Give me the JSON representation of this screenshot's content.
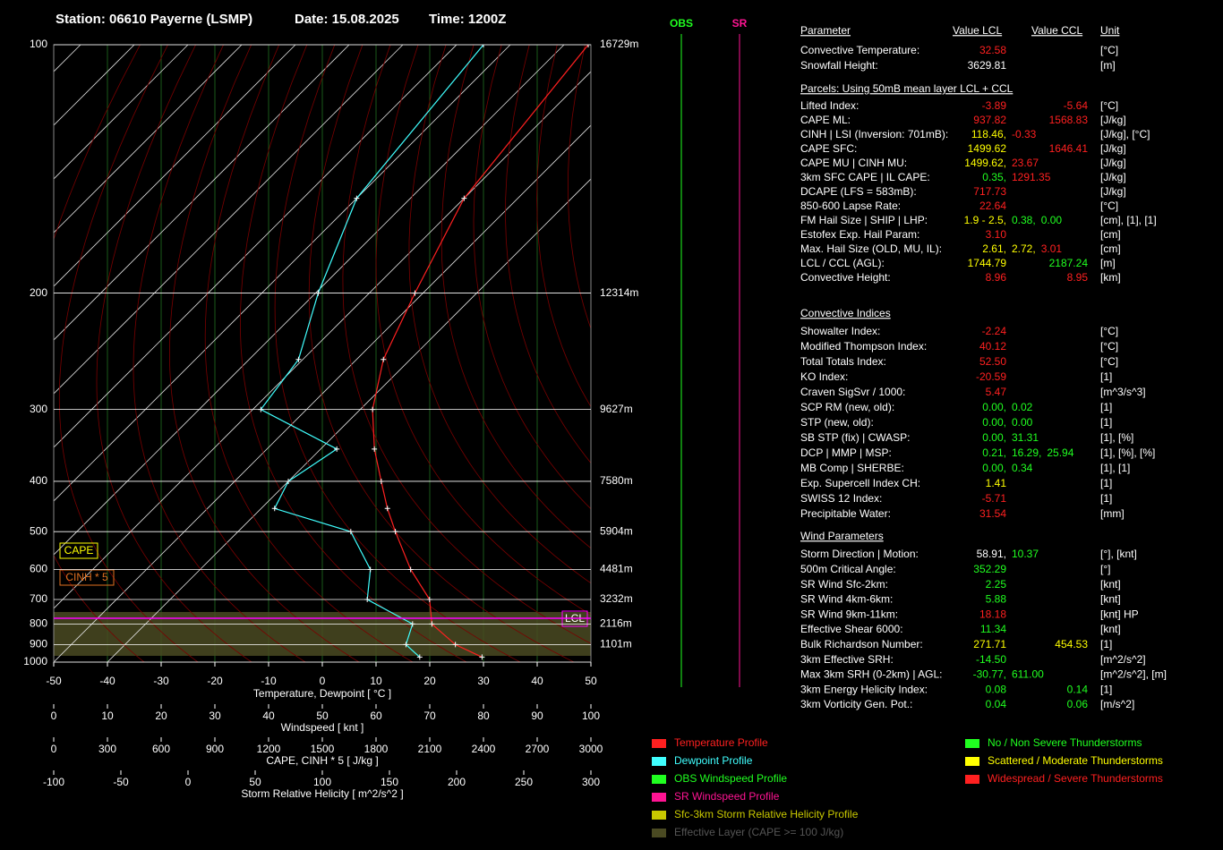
{
  "header": {
    "station": "Station: 06610 Payerne (LSMP)",
    "date": "Date: 15.08.2025",
    "time": "Time: 1200Z"
  },
  "chart_data": {
    "type": "skewt",
    "xlabel": "Temperature, Dewpoint  [ °C ]",
    "pressure": [
      970,
      900,
      800,
      700,
      600,
      500,
      450,
      400,
      350,
      300,
      250,
      200,
      150,
      100
    ],
    "series": [
      {
        "name": "Temperature Profile",
        "color": "#ff2020",
        "values": [
          28.8,
          21.5,
          13.3,
          8.3,
          -0.8,
          -10.7,
          -16.5,
          -22.7,
          -30,
          -37.7,
          -45,
          -51.5,
          -60,
          -65.5
        ]
      },
      {
        "name": "Dewpoint Profile",
        "color": "#40ffff",
        "values": [
          17.2,
          12.3,
          9.7,
          -3.3,
          -8.3,
          -19,
          -37.5,
          -40,
          -37,
          -58.5,
          -60.8,
          -69.5,
          -80,
          -85
        ]
      }
    ],
    "xlim": [
      -50,
      50
    ],
    "xticks": [
      -50,
      -40,
      -30,
      -20,
      -10,
      0,
      10,
      20,
      30,
      40,
      50
    ],
    "ylim": [
      100,
      1000
    ],
    "yticks": [
      100,
      200,
      300,
      400,
      500,
      600,
      700,
      800,
      900,
      1000
    ],
    "height_labels": [
      "16729m",
      "12314m",
      "9627m",
      "7580m",
      "5904m",
      "4481m",
      "3232m",
      "2116m",
      "1101m"
    ],
    "grid": true
  },
  "extra_axes": [
    {
      "label": "Windspeed  [ knt ]",
      "lim": [
        0,
        100
      ],
      "ticks": [
        0,
        10,
        20,
        30,
        40,
        50,
        60,
        70,
        80,
        90,
        100
      ]
    },
    {
      "label": "CAPE, CINH * 5  [ J/kg ]",
      "lim": [
        0,
        3000
      ],
      "ticks": [
        0,
        300,
        600,
        900,
        1200,
        1500,
        1800,
        2100,
        2400,
        2700,
        3000
      ]
    },
    {
      "label": "Storm Relative Helicity  [ m^2/s^2 ]",
      "lim": [
        -100,
        300
      ],
      "ticks": [
        -100,
        -50,
        0,
        50,
        100,
        150,
        200,
        250,
        300
      ]
    }
  ],
  "wind_columns": {
    "obs": "OBS",
    "sr": "SR"
  },
  "overlay_labels": {
    "cape": "CAPE",
    "cinh": "CINH * 5",
    "lcl": "LCL"
  },
  "table": {
    "headers": [
      "Parameter",
      "Value LCL",
      "Value CCL",
      "Unit"
    ],
    "top_rows": [
      {
        "label": "Convective Temperature:",
        "values": [
          {
            "text": "32.58",
            "color": "#ff2020"
          }
        ],
        "unit": "[°C]"
      },
      {
        "label": "Snowfall Height:",
        "values": [
          {
            "text": "3629.81",
            "color": "#ffffff"
          }
        ],
        "unit": "[m]"
      }
    ],
    "sections": [
      {
        "title": "Parcels: Using 50mB mean layer LCL + CCL",
        "rows": [
          {
            "label": "Lifted Index:",
            "values": [
              {
                "text": "-3.89",
                "color": "#ff2020"
              },
              {
                "text": "-5.64",
                "color": "#ff2020"
              }
            ],
            "unit": "[°C]"
          },
          {
            "label": "CAPE ML:",
            "values": [
              {
                "text": "937.82",
                "color": "#ff2020"
              },
              {
                "text": "1568.83",
                "color": "#ff2020"
              }
            ],
            "unit": "[J/kg]"
          },
          {
            "label": "CINH | LSI (Inversion: 701mB):",
            "values": [
              {
                "text": "118.46,",
                "color": "#ffff00"
              },
              {
                "text": "-0.33",
                "color": "#ff2020"
              }
            ],
            "unit": "[J/kg], [°C]"
          },
          {
            "label": "CAPE SFC:",
            "values": [
              {
                "text": "1499.62",
                "color": "#ffff00"
              },
              {
                "text": "1646.41",
                "color": "#ff2020"
              }
            ],
            "unit": "[J/kg]"
          },
          {
            "label": "CAPE MU | CINH MU:",
            "values": [
              {
                "text": "1499.62,",
                "color": "#ffff00"
              },
              {
                "text": "23.67",
                "color": "#ff2020"
              }
            ],
            "unit": "[J/kg]"
          },
          {
            "label": "3km SFC CAPE | IL CAPE:",
            "values": [
              {
                "text": "0.35,",
                "color": "#20ff20"
              },
              {
                "text": "1291.35",
                "color": "#ff2020"
              }
            ],
            "unit": "[J/kg]"
          },
          {
            "label": "DCAPE (LFS = 583mB):",
            "values": [
              {
                "text": "717.73",
                "color": "#ff2020"
              }
            ],
            "unit": "[J/kg]"
          },
          {
            "label": "850-600 Lapse Rate:",
            "values": [
              {
                "text": "22.64",
                "color": "#ff2020"
              }
            ],
            "unit": "[°C]"
          },
          {
            "label": "FM Hail Size | SHIP | LHP:",
            "values": [
              {
                "text": "1.9 - 2.5,",
                "color": "#ffff00"
              },
              {
                "text": "0.38,",
                "color": "#20ff20"
              },
              {
                "text": "0.00",
                "color": "#20ff20"
              }
            ],
            "unit": "[cm], [1], [1]"
          },
          {
            "label": "Estofex Exp. Hail Param:",
            "values": [
              {
                "text": "3.10",
                "color": "#ff2020"
              }
            ],
            "unit": "[cm]"
          },
          {
            "label": "Max. Hail Size (OLD, MU, IL):",
            "values": [
              {
                "text": "2.61,",
                "color": "#ffff00"
              },
              {
                "text": "2.72,",
                "color": "#ffff00"
              },
              {
                "text": "3.01",
                "color": "#ff2020"
              }
            ],
            "unit": "[cm]"
          },
          {
            "label": "LCL / CCL (AGL):",
            "values": [
              {
                "text": "1744.79",
                "color": "#ffff00"
              },
              {
                "text": "2187.24",
                "color": "#20ff20"
              }
            ],
            "unit": "[m]"
          },
          {
            "label": "Convective Height:",
            "values": [
              {
                "text": "8.96",
                "color": "#ff2020"
              },
              {
                "text": "8.95",
                "color": "#ff2020"
              }
            ],
            "unit": "[km]"
          }
        ]
      },
      {
        "title": "Convective Indices",
        "rows": [
          {
            "label": "Showalter Index:",
            "values": [
              {
                "text": "-2.24",
                "color": "#ff2020"
              }
            ],
            "unit": "[°C]"
          },
          {
            "label": "Modified Thompson Index:",
            "values": [
              {
                "text": "40.12",
                "color": "#ff2020"
              }
            ],
            "unit": "[°C]"
          },
          {
            "label": "Total Totals Index:",
            "values": [
              {
                "text": "52.50",
                "color": "#ff2020"
              }
            ],
            "unit": "[°C]"
          },
          {
            "label": "KO Index:",
            "values": [
              {
                "text": "-20.59",
                "color": "#ff2020"
              }
            ],
            "unit": "[1]"
          },
          {
            "label": "Craven SigSvr / 1000:",
            "values": [
              {
                "text": "5.47",
                "color": "#ff2020"
              }
            ],
            "unit": "[m^3/s^3]"
          },
          {
            "label": "SCP RM (new, old):",
            "values": [
              {
                "text": "0.00,",
                "color": "#20ff20"
              },
              {
                "text": "0.02",
                "color": "#20ff20"
              }
            ],
            "unit": "[1]"
          },
          {
            "label": "STP (new, old):",
            "values": [
              {
                "text": "0.00,",
                "color": "#20ff20"
              },
              {
                "text": "0.00",
                "color": "#20ff20"
              }
            ],
            "unit": "[1]"
          },
          {
            "label": "SB STP (fix) | CWASP:",
            "values": [
              {
                "text": "0.00,",
                "color": "#20ff20"
              },
              {
                "text": "31.31",
                "color": "#20ff20"
              }
            ],
            "unit": "[1], [%]"
          },
          {
            "label": "DCP | MMP | MSP:",
            "values": [
              {
                "text": "0.21,",
                "color": "#20ff20"
              },
              {
                "text": "16.29,",
                "color": "#20ff20"
              },
              {
                "text": "25.94",
                "color": "#20ff20"
              }
            ],
            "unit": "[1], [%], [%]"
          },
          {
            "label": "MB Comp | SHERBE:",
            "values": [
              {
                "text": "0.00,",
                "color": "#20ff20"
              },
              {
                "text": "0.34",
                "color": "#20ff20"
              }
            ],
            "unit": "[1], [1]"
          },
          {
            "label": "Exp. Supercell Index CH:",
            "values": [
              {
                "text": "1.41",
                "color": "#ffff00"
              }
            ],
            "unit": "[1]"
          },
          {
            "label": "SWISS 12 Index:",
            "values": [
              {
                "text": "-5.71",
                "color": "#ff2020"
              }
            ],
            "unit": "[1]"
          },
          {
            "label": "Precipitable Water:",
            "values": [
              {
                "text": "31.54",
                "color": "#ff2020"
              }
            ],
            "unit": "[mm]"
          }
        ]
      },
      {
        "title": "Wind Parameters",
        "rows": [
          {
            "label": "Storm Direction | Motion:",
            "values": [
              {
                "text": "58.91,",
                "color": "#ffffff"
              },
              {
                "text": "10.37",
                "color": "#20ff20"
              }
            ],
            "unit": "[°], [knt]"
          },
          {
            "label": "500m Critical Angle:",
            "values": [
              {
                "text": "352.29",
                "color": "#20ff20"
              }
            ],
            "unit": "[°]"
          },
          {
            "label": "SR Wind Sfc-2km:",
            "values": [
              {
                "text": "2.25",
                "color": "#20ff20"
              }
            ],
            "unit": "[knt]"
          },
          {
            "label": "SR Wind 4km-6km:",
            "values": [
              {
                "text": "5.88",
                "color": "#20ff20"
              }
            ],
            "unit": "[knt]"
          },
          {
            "label": "SR Wind 9km-11km:",
            "values": [
              {
                "text": "18.18",
                "color": "#ff2020"
              }
            ],
            "unit": "[knt] HP"
          },
          {
            "label": "Effective Shear 6000:",
            "values": [
              {
                "text": "11.34",
                "color": "#20ff20"
              }
            ],
            "unit": "[knt]"
          },
          {
            "label": "Bulk Richardson Number:",
            "values": [
              {
                "text": "271.71",
                "color": "#ffff00"
              },
              {
                "text": "454.53",
                "color": "#ffff00"
              }
            ],
            "unit": "[1]"
          },
          {
            "label": "3km Effective SRH:",
            "values": [
              {
                "text": "-14.50",
                "color": "#20ff20"
              }
            ],
            "unit": "[m^2/s^2]"
          },
          {
            "label": "Max 3km SRH (0-2km) | AGL:",
            "values": [
              {
                "text": "-30.77,",
                "color": "#20ff20"
              },
              {
                "text": "611.00",
                "color": "#20ff20"
              }
            ],
            "unit": "[m^2/s^2], [m]"
          },
          {
            "label": "3km Energy Helicity Index:",
            "values": [
              {
                "text": "0.08",
                "color": "#20ff20"
              },
              {
                "text": "0.14",
                "color": "#20ff20"
              }
            ],
            "unit": "[1]"
          },
          {
            "label": "3km Vorticity Gen. Pot.:",
            "values": [
              {
                "text": "0.04",
                "color": "#20ff20"
              },
              {
                "text": "0.06",
                "color": "#20ff20"
              }
            ],
            "unit": "[m/s^2]"
          }
        ]
      }
    ]
  },
  "legend": {
    "profiles": [
      {
        "text": "OBS Windspeed Profile",
        "color": "#20ff20"
      },
      {
        "text": "SR Windspeed Profile",
        "color": "#ff1493"
      },
      {
        "text": "Sfc-3km Storm Relative Helicity Profile",
        "color": "#c8c800"
      },
      {
        "text": "Effective Layer (CAPE >= 100 J/kg)",
        "color": "#4a4a22"
      }
    ],
    "severity": [
      {
        "text": "No / Non Severe Thunderstorms",
        "color": "#20ff20"
      },
      {
        "text": "Scattered / Moderate Thunderstorms",
        "color": "#ffff00"
      },
      {
        "text": "Widespread / Severe Thunderstorms",
        "color": "#ff2020"
      }
    ]
  }
}
